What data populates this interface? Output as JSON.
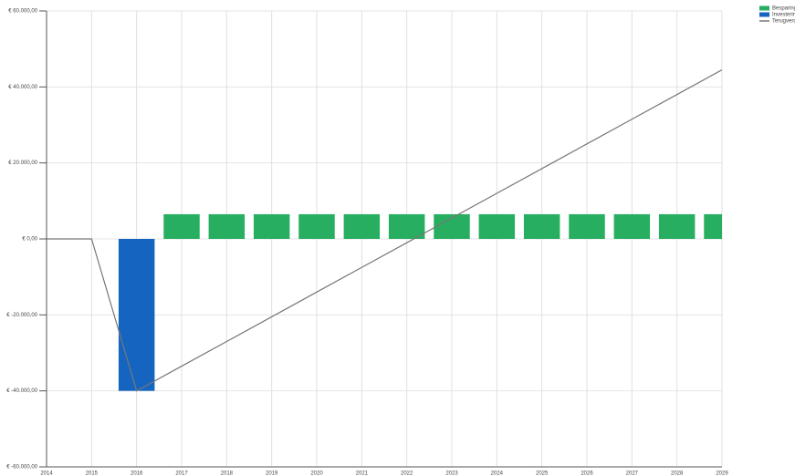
{
  "chart_data": {
    "type": "bar-line",
    "categories": [
      "2014",
      "2015",
      "2016",
      "2017",
      "2018",
      "2019",
      "2020",
      "2021",
      "2022",
      "2023",
      "2024",
      "2025",
      "2026",
      "2027",
      "2028",
      "2029"
    ],
    "series": [
      {
        "name": "Besparing",
        "type": "bar",
        "color": "#27ae60",
        "values": [
          null,
          null,
          null,
          6500,
          6500,
          6500,
          6500,
          6500,
          6500,
          6500,
          6500,
          6500,
          6500,
          6500,
          6500,
          6500
        ]
      },
      {
        "name": "Investering",
        "type": "bar",
        "color": "#1565c0",
        "values": [
          null,
          null,
          -40000,
          null,
          null,
          null,
          null,
          null,
          null,
          null,
          null,
          null,
          null,
          null,
          null,
          null
        ]
      },
      {
        "name": "Terugverdientijd",
        "type": "line",
        "color": "#777777",
        "values": [
          0,
          0,
          -40000,
          -33500,
          -27000,
          -20500,
          -14000,
          -7500,
          -1000,
          5500,
          12000,
          18500,
          25000,
          31500,
          38000,
          44500
        ]
      }
    ],
    "ylim": [
      -60000,
      60000
    ],
    "yticks": [
      {
        "value": 60000,
        "label": "€ 60.000,00"
      },
      {
        "value": 40000,
        "label": "€ 40.000,00"
      },
      {
        "value": 20000,
        "label": "€ 20.000,00"
      },
      {
        "value": 0,
        "label": "€ 0,00"
      },
      {
        "value": -20000,
        "label": "€ -20.000,00"
      },
      {
        "value": -40000,
        "label": "€ -40.000,00"
      },
      {
        "value": -60000,
        "label": "€ -60.000,00"
      }
    ],
    "grid": true,
    "legend": "top-right"
  }
}
